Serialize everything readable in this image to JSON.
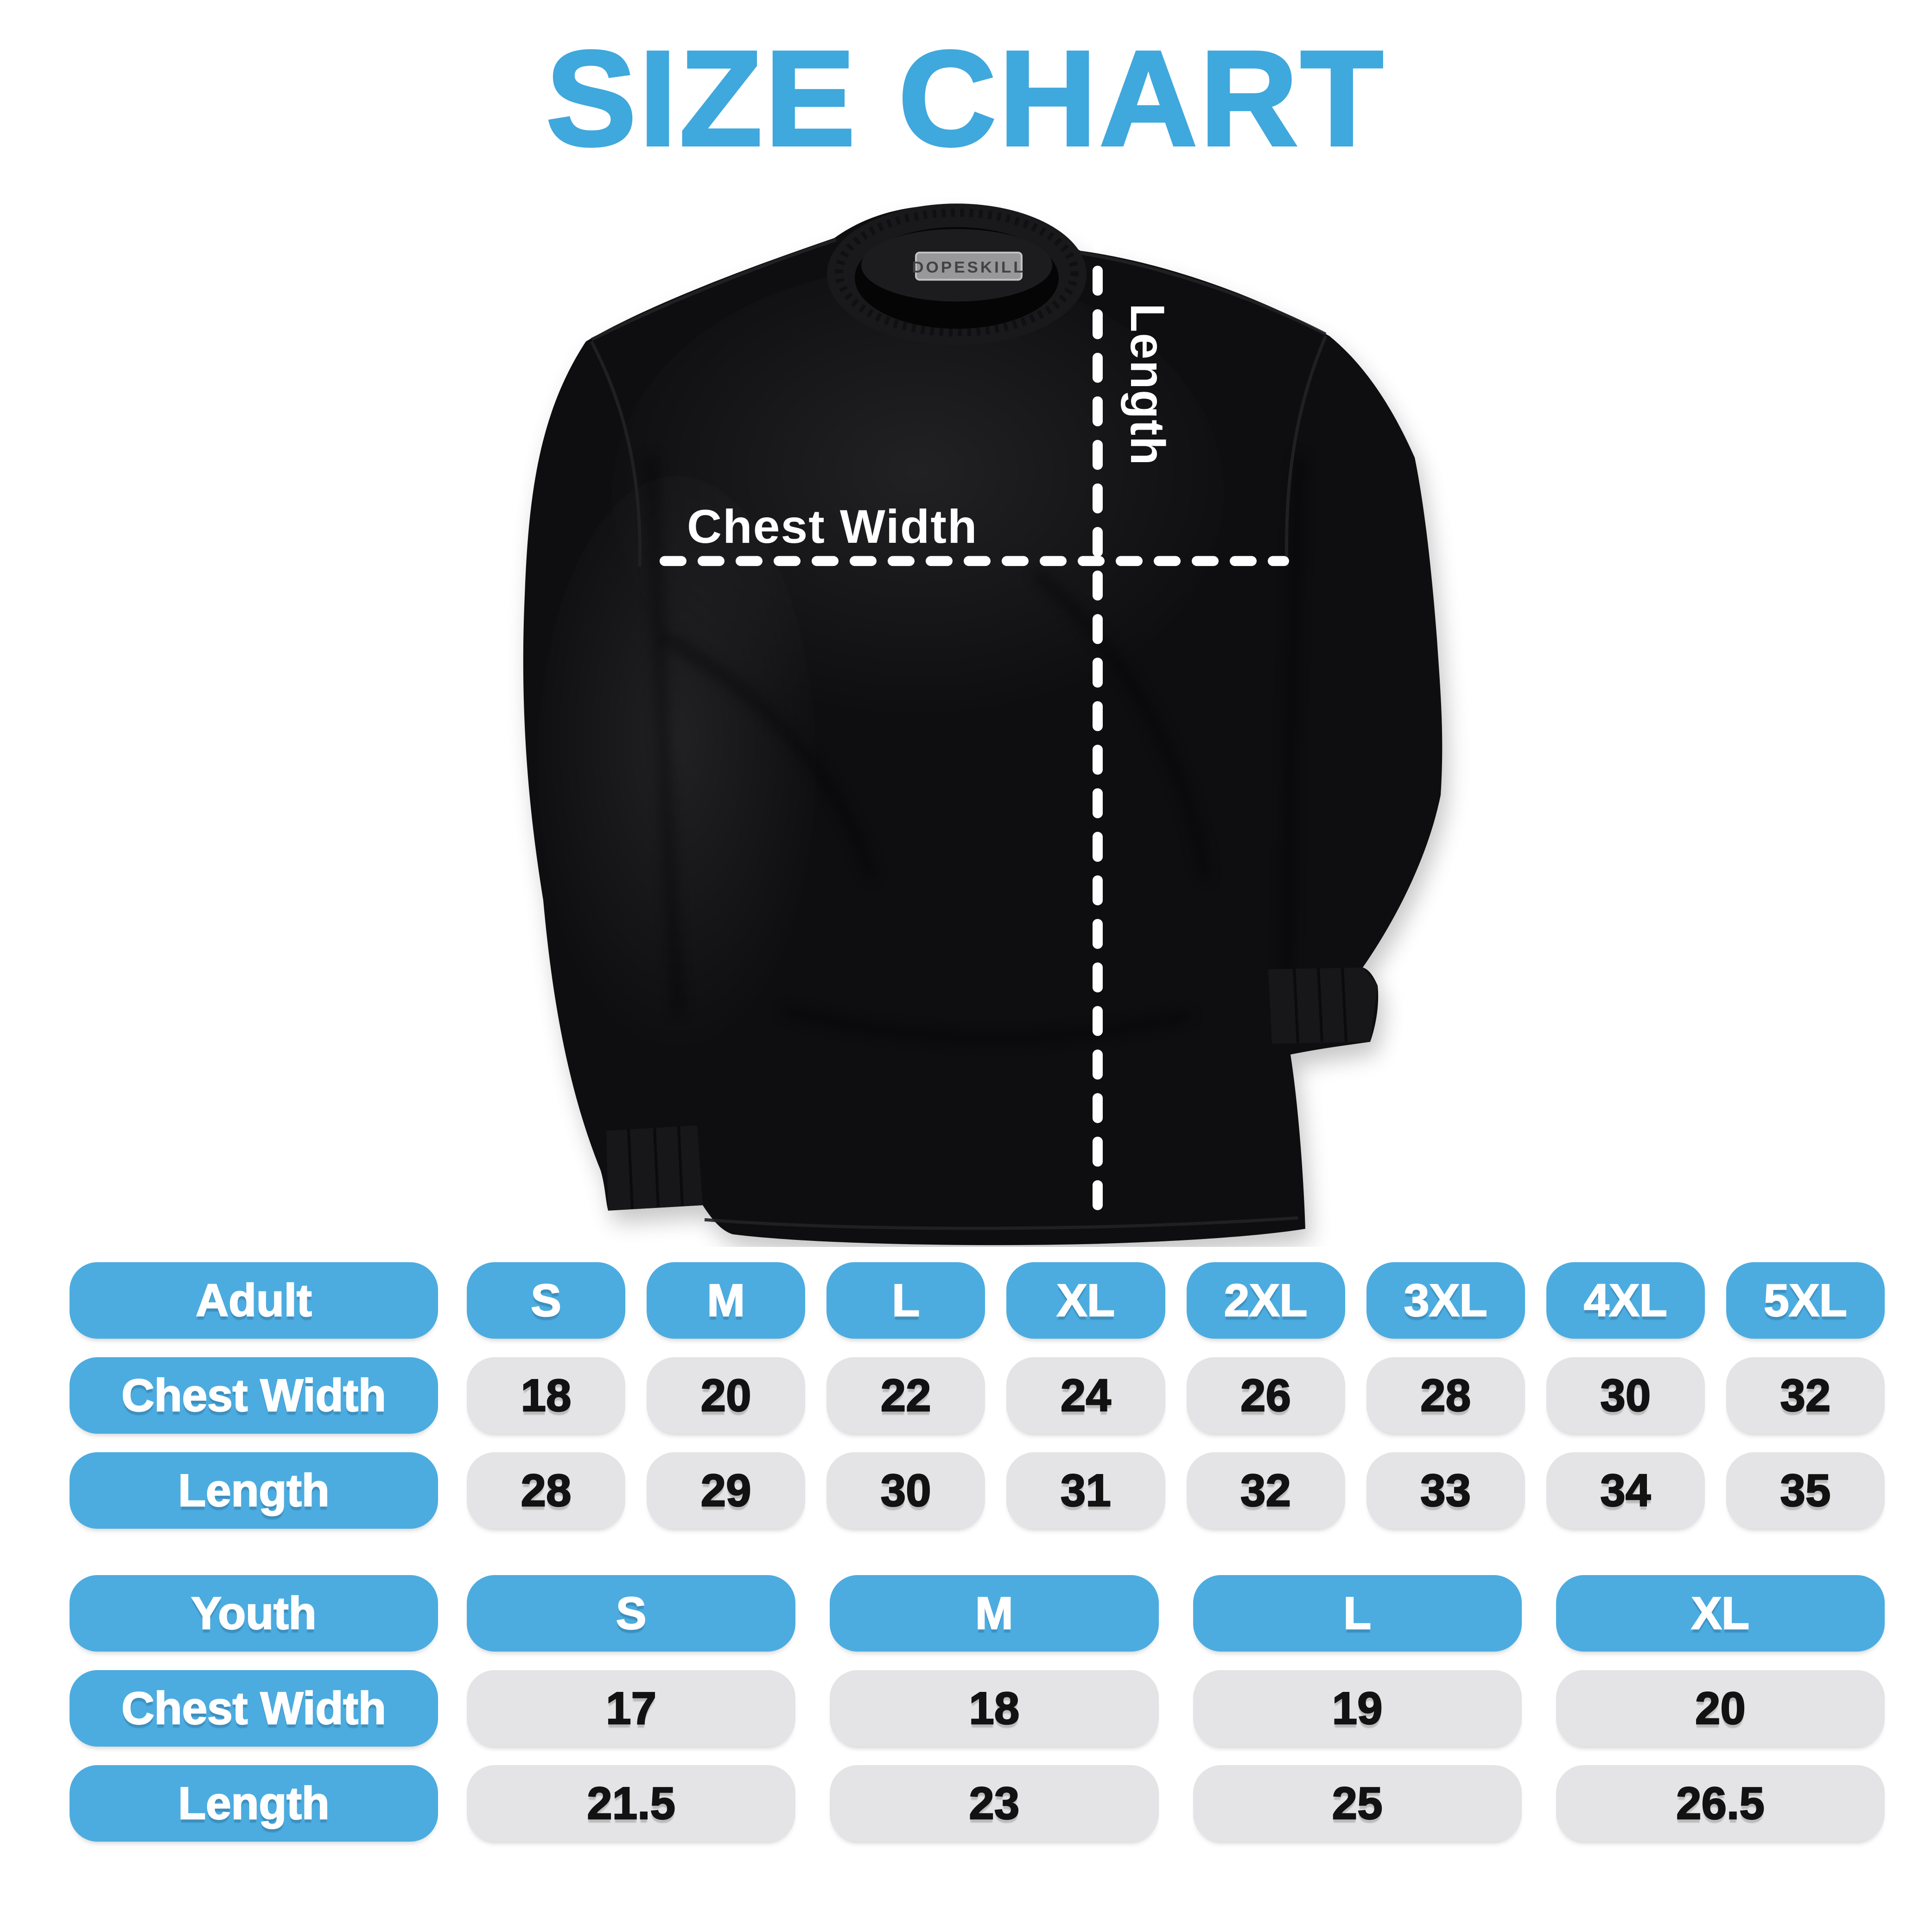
{
  "title": "SIZE CHART",
  "colors": {
    "title_blue": "#3FA8DD",
    "pill_blue": "#4CACE0",
    "pill_gray": "#E4E4E6",
    "value_text": "#121212",
    "header_text": "#FFFFFF",
    "shirt_black": "#0E0E10",
    "measure_line_white": "#FFFFFF",
    "brand_tag_bg": "#98989A",
    "brand_tag_text": "#424244",
    "background": "#FFFFFF"
  },
  "shirt_diagram": {
    "chest_width_label": "Chest Width",
    "length_label": "Length",
    "brand_label": "DOPESKILL"
  },
  "tables": [
    {
      "id": "adult",
      "header_label": "Adult",
      "sizes": [
        "S",
        "M",
        "L",
        "XL",
        "2XL",
        "3XL",
        "4XL",
        "5XL"
      ],
      "rows": [
        {
          "label": "Chest Width",
          "values": [
            "18",
            "20",
            "22",
            "24",
            "26",
            "28",
            "30",
            "32"
          ]
        },
        {
          "label": "Length",
          "values": [
            "28",
            "29",
            "30",
            "31",
            "32",
            "33",
            "34",
            "35"
          ]
        }
      ]
    },
    {
      "id": "youth",
      "header_label": "Youth",
      "sizes": [
        "S",
        "M",
        "L",
        "XL"
      ],
      "rows": [
        {
          "label": "Chest Width",
          "values": [
            "17",
            "18",
            "19",
            "20"
          ]
        },
        {
          "label": "Length",
          "values": [
            "21.5",
            "23",
            "25",
            "26.5"
          ]
        }
      ]
    }
  ],
  "chart_data": [
    {
      "type": "table",
      "title": "Adult size chart (inches)",
      "columns": [
        "Adult",
        "S",
        "M",
        "L",
        "XL",
        "2XL",
        "3XL",
        "4XL",
        "5XL"
      ],
      "rows": [
        [
          "Chest Width",
          18,
          20,
          22,
          24,
          26,
          28,
          30,
          32
        ],
        [
          "Length",
          28,
          29,
          30,
          31,
          32,
          33,
          34,
          35
        ]
      ]
    },
    {
      "type": "table",
      "title": "Youth size chart (inches)",
      "columns": [
        "Youth",
        "S",
        "M",
        "L",
        "XL"
      ],
      "rows": [
        [
          "Chest Width",
          17,
          18,
          19,
          20
        ],
        [
          "Length",
          21.5,
          23,
          25,
          26.5
        ]
      ]
    }
  ]
}
